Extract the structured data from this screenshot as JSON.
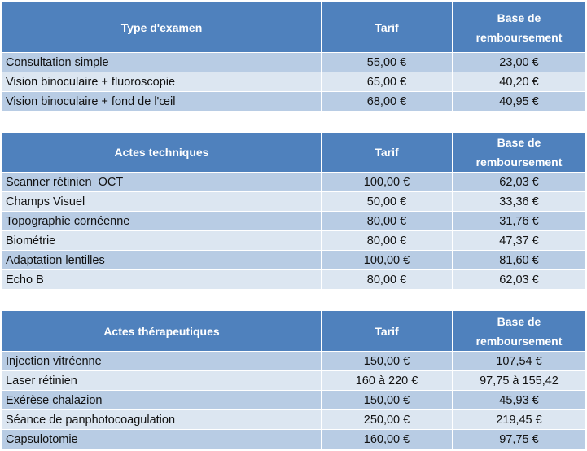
{
  "tables": [
    {
      "headers": [
        "Type d'examen",
        "Tarif",
        "Base de remboursement"
      ],
      "rows": [
        [
          "Consultation simple",
          "55,00 €",
          "23,00 €"
        ],
        [
          "Vision binoculaire + fluoroscopie",
          "65,00 €",
          "40,20 €"
        ],
        [
          "Vision binoculaire + fond de l'œil",
          "68,00 €",
          "40,95 €"
        ]
      ]
    },
    {
      "headers": [
        "Actes techniques",
        "Tarif",
        "Base de remboursement"
      ],
      "rows": [
        [
          "Scanner rétinien  OCT",
          "100,00 €",
          "62,03 €"
        ],
        [
          "Champs Visuel",
          "50,00 €",
          "33,36 €"
        ],
        [
          "Topographie cornéenne",
          "80,00 €",
          "31,76 €"
        ],
        [
          "Biométrie",
          "80,00 €",
          "47,37 €"
        ],
        [
          "Adaptation lentilles",
          "100,00 €",
          "81,60 €"
        ],
        [
          "Echo B",
          "80,00 €",
          "62,03 €"
        ]
      ]
    },
    {
      "headers": [
        "Actes thérapeutiques",
        "Tarif",
        "Base de remboursement"
      ],
      "rows": [
        [
          "Injection vitréenne",
          "150,00 €",
          "107,54 €"
        ],
        [
          "Laser rétinien",
          "160 à 220 €",
          "97,75 à 155,42"
        ],
        [
          "Exérèse chalazion",
          "150,00 €",
          "45,93 €"
        ],
        [
          "Séance de panphotocoagulation",
          "250,00 €",
          "219,45 €"
        ],
        [
          "Capsulotomie",
          "160,00 €",
          "97,75 €"
        ]
      ]
    }
  ],
  "colors": {
    "header_bg": "#4f81bd",
    "header_text": "#ffffff",
    "row_odd": "#b8cce4",
    "row_even": "#dce6f1"
  }
}
